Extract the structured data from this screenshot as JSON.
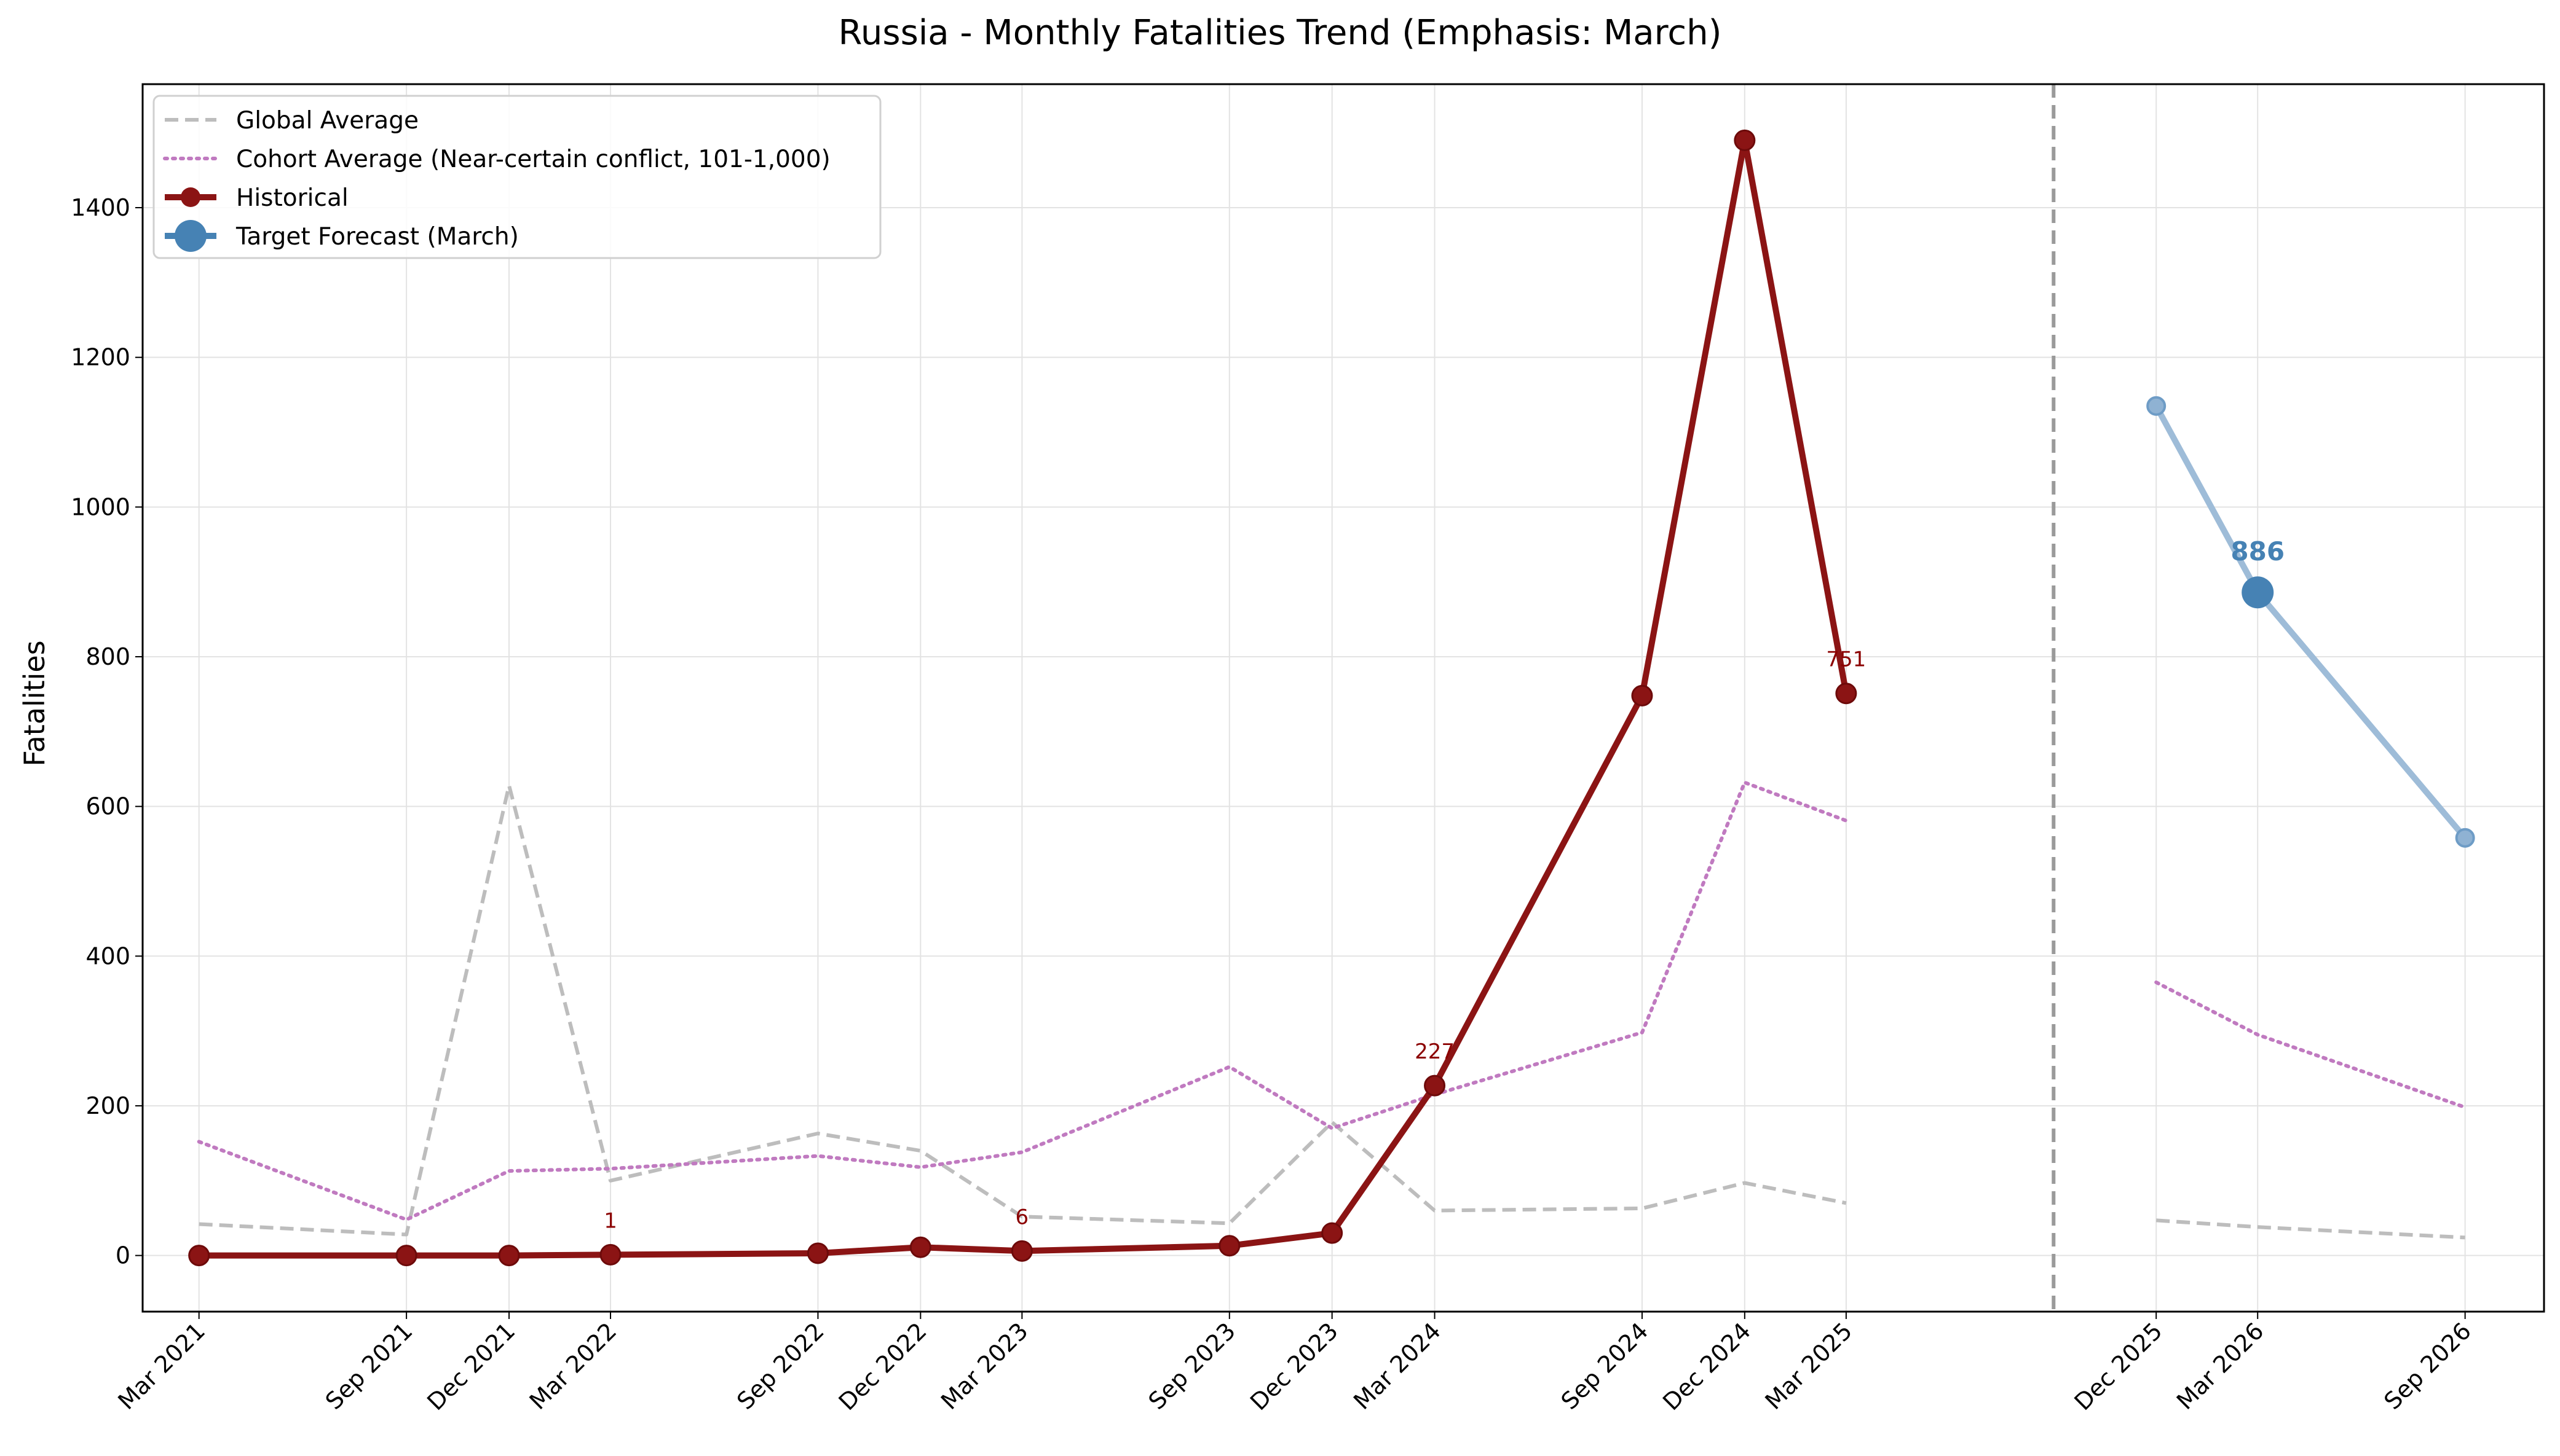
{
  "chart_data": {
    "type": "line",
    "title": "Russia - Monthly Fatalities Trend (Emphasis: March)",
    "xlabel": "",
    "ylabel": "Fatalities",
    "ylim": [
      -75,
      1565
    ],
    "yticks": [
      0,
      200,
      400,
      600,
      800,
      1000,
      1200,
      1400
    ],
    "xlim": [
      "2021-01-10",
      "2026-11-10"
    ],
    "xticks": [
      "Mar 2021",
      "Sep 2021",
      "Dec 2021",
      "Mar 2022",
      "Sep 2022",
      "Dec 2022",
      "Mar 2023",
      "Sep 2023",
      "Dec 2023",
      "Mar 2024",
      "Sep 2024",
      "Dec 2024",
      "Mar 2025",
      "Dec 2025",
      "Mar 2026",
      "Sep 2026"
    ],
    "grid": true,
    "legend_position": "top-left",
    "separator_date": "2025-09-01",
    "series": [
      {
        "name": "Global Average",
        "style": "dashed",
        "color": "#bdbdbd",
        "points": [
          {
            "x": "2021-03-01",
            "y": 42
          },
          {
            "x": "2021-09-01",
            "y": 28
          },
          {
            "x": "2021-12-01",
            "y": 628
          },
          {
            "x": "2022-03-01",
            "y": 100
          },
          {
            "x": "2022-09-01",
            "y": 163
          },
          {
            "x": "2022-12-01",
            "y": 140
          },
          {
            "x": "2023-03-01",
            "y": 52
          },
          {
            "x": "2023-09-01",
            "y": 43
          },
          {
            "x": "2023-12-01",
            "y": 178
          },
          {
            "x": "2024-03-01",
            "y": 60
          },
          {
            "x": "2024-09-01",
            "y": 63
          },
          {
            "x": "2024-12-01",
            "y": 97
          },
          {
            "x": "2025-03-01",
            "y": 70
          }
        ]
      },
      {
        "name": "Global Average (forecast)",
        "style": "dashed",
        "color": "#bdbdbd",
        "points": [
          {
            "x": "2025-12-01",
            "y": 47
          },
          {
            "x": "2026-03-01",
            "y": 38
          },
          {
            "x": "2026-09-01",
            "y": 24
          }
        ]
      },
      {
        "name": "Cohort Average (Near-certain conflict, 101-1,000)",
        "style": "dotted",
        "color": "#c07ac0",
        "points": [
          {
            "x": "2021-03-01",
            "y": 152
          },
          {
            "x": "2021-09-01",
            "y": 48
          },
          {
            "x": "2021-12-01",
            "y": 113
          },
          {
            "x": "2022-03-01",
            "y": 116
          },
          {
            "x": "2022-09-01",
            "y": 133
          },
          {
            "x": "2022-12-01",
            "y": 118
          },
          {
            "x": "2023-03-01",
            "y": 138
          },
          {
            "x": "2023-09-01",
            "y": 252
          },
          {
            "x": "2023-12-01",
            "y": 170
          },
          {
            "x": "2024-03-01",
            "y": 215
          },
          {
            "x": "2024-09-01",
            "y": 298
          },
          {
            "x": "2024-12-01",
            "y": 632
          },
          {
            "x": "2025-03-01",
            "y": 581
          }
        ]
      },
      {
        "name": "Cohort Average (forecast)",
        "style": "dotted",
        "color": "#c07ac0",
        "points": [
          {
            "x": "2025-12-01",
            "y": 365
          },
          {
            "x": "2026-03-01",
            "y": 295
          },
          {
            "x": "2026-09-01",
            "y": 198
          }
        ]
      },
      {
        "name": "Historical",
        "style": "solid",
        "color": "#8b1414",
        "marker": "circle",
        "points": [
          {
            "x": "2021-03-01",
            "y": 0
          },
          {
            "x": "2021-09-01",
            "y": 0
          },
          {
            "x": "2021-12-01",
            "y": 0
          },
          {
            "x": "2022-03-01",
            "y": 1
          },
          {
            "x": "2022-09-01",
            "y": 3
          },
          {
            "x": "2022-12-01",
            "y": 11
          },
          {
            "x": "2023-03-01",
            "y": 6
          },
          {
            "x": "2023-09-01",
            "y": 13
          },
          {
            "x": "2023-12-01",
            "y": 30
          },
          {
            "x": "2024-03-01",
            "y": 227
          },
          {
            "x": "2024-09-01",
            "y": 748
          },
          {
            "x": "2024-12-01",
            "y": 1490
          },
          {
            "x": "2025-03-01",
            "y": 751
          }
        ]
      },
      {
        "name": "Target Forecast (March)",
        "style": "solid",
        "color": "#9ebcd8",
        "marker": "circle",
        "points": [
          {
            "x": "2025-12-01",
            "y": 1135
          },
          {
            "x": "2026-03-01",
            "y": 886
          },
          {
            "x": "2026-09-01",
            "y": 558
          }
        ]
      }
    ],
    "highlight": {
      "x": "2026-03-01",
      "y": 886,
      "color": "#4682b4"
    },
    "annotations": [
      {
        "x": "2022-03-01",
        "y": 1,
        "text": "1"
      },
      {
        "x": "2023-03-01",
        "y": 6,
        "text": "6"
      },
      {
        "x": "2024-03-01",
        "y": 227,
        "text": "227"
      },
      {
        "x": "2025-03-01",
        "y": 751,
        "text": "751"
      },
      {
        "x": "2026-03-01",
        "y": 886,
        "text": "886"
      }
    ],
    "legend": [
      {
        "label": "Global Average",
        "style": "dashed",
        "color": "#bdbdbd"
      },
      {
        "label": "Cohort Average (Near-certain conflict, 101-1,000)",
        "style": "dotted",
        "color": "#c07ac0"
      },
      {
        "label": "Historical",
        "style": "solid",
        "color": "#8b1414"
      },
      {
        "label": "Target Forecast (March)",
        "style": "solid",
        "color": "#4682b4"
      }
    ]
  }
}
